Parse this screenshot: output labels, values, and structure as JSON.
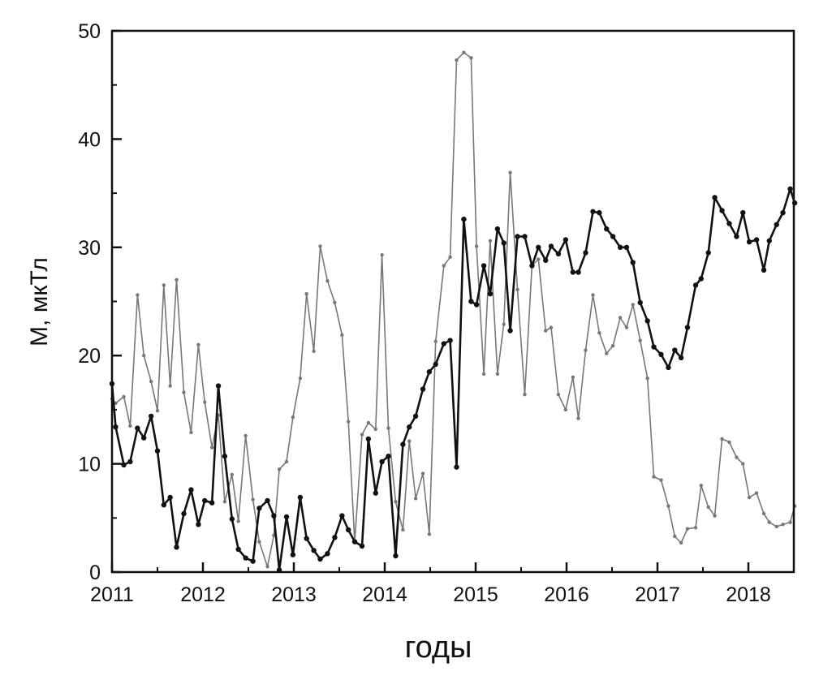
{
  "chart_data": {
    "type": "line",
    "title": "",
    "xlabel": "годы",
    "ylabel": "M, мкТл",
    "xlim": [
      2011,
      2018.51
    ],
    "ylim": [
      0,
      50
    ],
    "x_ticks": [
      "2011",
      "2012",
      "2013",
      "2014",
      "2015",
      "2016",
      "2017",
      "2018"
    ],
    "y_ticks": [
      "0",
      "10",
      "20",
      "30",
      "40",
      "50"
    ],
    "grid": false,
    "legend": "none",
    "x": [
      2011.0,
      2011.04,
      2011.13,
      2011.2,
      2011.28,
      2011.35,
      2011.43,
      2011.5,
      2011.57,
      2011.64,
      2011.71,
      2011.79,
      2011.87,
      2011.95,
      2012.02,
      2012.1,
      2012.17,
      2012.24,
      2012.32,
      2012.39,
      2012.47,
      2012.55,
      2012.62,
      2012.71,
      2012.78,
      2012.84,
      2012.92,
      2012.99,
      2013.07,
      2013.14,
      2013.22,
      2013.29,
      2013.37,
      2013.45,
      2013.53,
      2013.6,
      2013.67,
      2013.75,
      2013.82,
      2013.9,
      2013.97,
      2014.04,
      2014.12,
      2014.2,
      2014.27,
      2014.34,
      2014.42,
      2014.49,
      2014.56,
      2014.65,
      2014.72,
      2014.79,
      2014.87,
      2014.95,
      2015.01,
      2015.09,
      2015.16,
      2015.24,
      2015.31,
      2015.38,
      2015.46,
      2015.54,
      2015.62,
      2015.69,
      2015.77,
      2015.83,
      2015.91,
      2015.99,
      2016.07,
      2016.13,
      2016.21,
      2016.29,
      2016.36,
      2016.44,
      2016.51,
      2016.59,
      2016.66,
      2016.73,
      2016.81,
      2016.89,
      2016.96,
      2017.04,
      2017.12,
      2017.19,
      2017.26,
      2017.33,
      2017.42,
      2017.48,
      2017.56,
      2017.63,
      2017.71,
      2017.79,
      2017.87,
      2017.94,
      2018.01,
      2018.09,
      2018.17,
      2018.23,
      2018.31,
      2018.38,
      2018.46,
      2018.51
    ],
    "series": [
      {
        "color": "#111111",
        "values": [
          17.4,
          13.4,
          9.9,
          10.2,
          13.3,
          12.4,
          14.4,
          11.2,
          6.2,
          6.9,
          2.3,
          5.4,
          7.6,
          4.4,
          6.6,
          6.4,
          17.2,
          10.7,
          4.9,
          2.1,
          1.3,
          1.0,
          5.9,
          6.6,
          5.2,
          0.2,
          5.1,
          1.6,
          6.9,
          3.1,
          2.0,
          1.2,
          1.7,
          3.2,
          5.2,
          3.9,
          2.8,
          2.4,
          12.3,
          7.3,
          10.2,
          10.7,
          1.5,
          11.8,
          13.4,
          14.4,
          16.9,
          18.5,
          19.2,
          21.1,
          21.4,
          9.7,
          32.6,
          25.0,
          24.7,
          28.3,
          25.7,
          31.7,
          30.4,
          22.3,
          31.0,
          31.0,
          28.3,
          30.0,
          28.8,
          30.1,
          29.4,
          30.7,
          27.7,
          27.7,
          29.5,
          33.3,
          33.2,
          31.7,
          31.0,
          30.0,
          30.0,
          28.6,
          24.9,
          23.2,
          20.8,
          20.1,
          18.9,
          20.5,
          19.8,
          22.6,
          26.5,
          27.1,
          29.5,
          34.6,
          33.4,
          32.2,
          31.0,
          33.2,
          30.5,
          30.7,
          27.9,
          30.6,
          32.1,
          33.2,
          35.4,
          34.1
        ]
      },
      {
        "color": "#777777",
        "values": [
          16.0,
          15.6,
          16.2,
          13.5,
          25.6,
          20.0,
          17.6,
          14.9,
          26.5,
          17.2,
          27.0,
          16.6,
          12.9,
          21.0,
          15.7,
          11.5,
          14.5,
          6.5,
          9.0,
          4.7,
          12.6,
          6.7,
          2.8,
          0.5,
          3.4,
          9.5,
          10.2,
          14.3,
          17.9,
          25.7,
          20.4,
          30.1,
          26.9,
          24.9,
          21.9,
          13.9,
          2.8,
          12.7,
          13.8,
          13.2,
          29.3,
          13.3,
          6.5,
          3.9,
          12.1,
          6.8,
          9.1,
          3.5,
          21.3,
          28.3,
          29.1,
          47.3,
          48.0,
          47.5,
          30.1,
          18.3,
          30.6,
          18.3,
          22.9,
          36.9,
          26.1,
          16.4,
          28.3,
          28.9,
          22.3,
          22.6,
          16.4,
          15.0,
          18.0,
          14.2,
          20.5,
          25.6,
          22.1,
          20.2,
          20.9,
          23.5,
          22.6,
          24.7,
          21.4,
          17.9,
          8.8,
          8.5,
          6.1,
          3.3,
          2.7,
          4.0,
          4.1,
          8.0,
          6.0,
          5.2,
          12.3,
          12.0,
          10.6,
          10.0,
          6.9,
          7.3,
          5.4,
          4.6,
          4.2,
          4.4,
          4.6,
          6.1
        ]
      }
    ]
  }
}
